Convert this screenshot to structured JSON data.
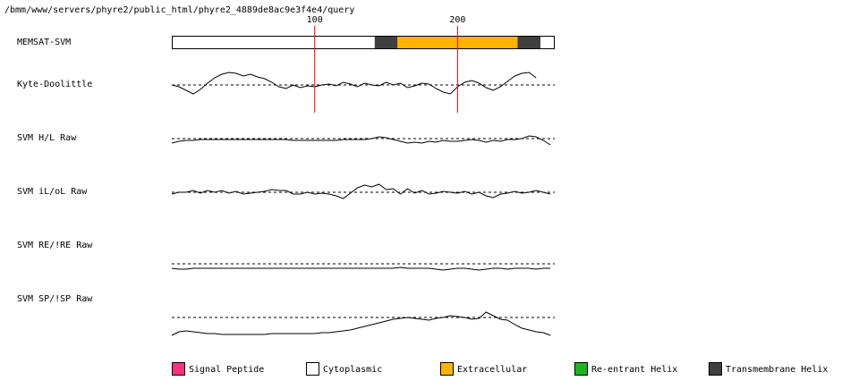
{
  "chart_data": {
    "type": "track",
    "title": "/bmm/www/servers/phyre2/public_html/phyre2_4889de8ac9e3f4e4/query",
    "xlim": [
      0,
      268
    ],
    "xticks": [
      100,
      200
    ],
    "ylim": [
      -20,
      20
    ],
    "bar_label": "MEMSAT-SVM",
    "segments": [
      {
        "start": 0,
        "end": 142,
        "color": "#ffffff"
      },
      {
        "start": 142,
        "end": 158,
        "color": "#404040"
      },
      {
        "start": 158,
        "end": 242,
        "color": "#ffb300"
      },
      {
        "start": 242,
        "end": 258,
        "color": "#404040"
      },
      {
        "start": 258,
        "end": 268,
        "color": "#ffffff"
      }
    ],
    "x": [
      0,
      5,
      10,
      15,
      20,
      25,
      30,
      35,
      40,
      45,
      50,
      55,
      60,
      65,
      70,
      75,
      80,
      85,
      90,
      95,
      100,
      105,
      110,
      115,
      120,
      125,
      130,
      135,
      140,
      145,
      150,
      155,
      160,
      165,
      170,
      175,
      180,
      185,
      190,
      195,
      200,
      205,
      210,
      215,
      220,
      225,
      230,
      235,
      240,
      245,
      250,
      255,
      260,
      265
    ],
    "series": [
      {
        "name": "Kyte-Doolittle",
        "values": [
          0,
          -2,
          -6,
          -10,
          -5,
          2,
          8,
          12,
          14,
          13,
          10,
          12,
          9,
          7,
          3,
          -2,
          -4,
          0,
          -3,
          -1,
          -2,
          0,
          1,
          -1,
          3,
          1,
          -2,
          2,
          0,
          -1,
          3,
          0,
          2,
          -3,
          -1,
          2,
          1,
          -4,
          -8,
          -10,
          -2,
          3,
          5,
          2,
          -3,
          -6,
          -2,
          4,
          10,
          13,
          14,
          8,
          null,
          null
        ]
      },
      {
        "name": "SVM H/L Raw",
        "values": [
          -5,
          -3,
          -2,
          -2,
          -1,
          -1,
          -1,
          -1,
          -1,
          -1,
          -1,
          -1,
          -1,
          -1,
          -1,
          -1,
          -1,
          -2,
          -2,
          -2,
          -2,
          -2,
          -2,
          -2,
          -1,
          -1,
          -1,
          -1,
          0,
          2,
          1,
          -1,
          -3,
          -5,
          -4,
          -5,
          -3,
          -4,
          -2,
          -3,
          -3,
          -2,
          -1,
          -2,
          -4,
          -2,
          -3,
          -1,
          -1,
          0,
          3,
          2,
          -2,
          -7
        ]
      },
      {
        "name": "SVM iL/oL Raw",
        "values": [
          -2,
          0,
          0,
          2,
          -1,
          2,
          0,
          2,
          -1,
          1,
          -2,
          -1,
          0,
          1,
          3,
          2,
          2,
          -2,
          -2,
          0,
          -2,
          -1,
          -2,
          -4,
          -7,
          -1,
          5,
          8,
          6,
          9,
          3,
          4,
          -2,
          4,
          -1,
          2,
          -2,
          -1,
          1,
          0,
          -1,
          1,
          -2,
          0,
          -4,
          -6,
          -2,
          -1,
          1,
          -1,
          0,
          2,
          0,
          -2
        ]
      },
      {
        "name": "SVM RE/!RE Raw",
        "values": [
          -5,
          -6,
          -6,
          -5,
          -5,
          -5,
          -5,
          -5,
          -5,
          -5,
          -5,
          -5,
          -5,
          -5,
          -5,
          -5,
          -5,
          -5,
          -5,
          -5,
          -5,
          -5,
          -5,
          -5,
          -5,
          -5,
          -5,
          -5,
          -5,
          -5,
          -5,
          -5,
          -4,
          -5,
          -5,
          -5,
          -5,
          -6,
          -7,
          -6,
          -5,
          -5,
          -6,
          -7,
          -6,
          -5,
          -5,
          -6,
          -5,
          -5,
          -5,
          -6,
          -5,
          -5
        ]
      },
      {
        "name": "SVM SP/!SP Raw",
        "values": [
          -20,
          -16,
          -15,
          -16,
          -17,
          -18,
          -18,
          -19,
          -19,
          -19,
          -19,
          -19,
          -19,
          -19,
          -18,
          -18,
          -18,
          -18,
          -18,
          -18,
          -18,
          -17,
          -17,
          -16,
          -15,
          -14,
          -12,
          -10,
          -8,
          -6,
          -4,
          -2,
          -1,
          0,
          -1,
          -2,
          -3,
          -1,
          0,
          2,
          1,
          0,
          -2,
          -1,
          6,
          2,
          -2,
          -3,
          -8,
          -12,
          -14,
          -16,
          -17,
          -20
        ]
      }
    ],
    "legend": [
      {
        "name": "Signal Peptide",
        "color": "#ff3380"
      },
      {
        "name": "Cytoplasmic",
        "color": "#ffffff"
      },
      {
        "name": "Extracellular",
        "color": "#ffb300"
      },
      {
        "name": "Re-entrant Helix",
        "color": "#22b322"
      },
      {
        "name": "Transmembrane Helix",
        "color": "#404040"
      }
    ],
    "marker_color": "#ff0000"
  }
}
